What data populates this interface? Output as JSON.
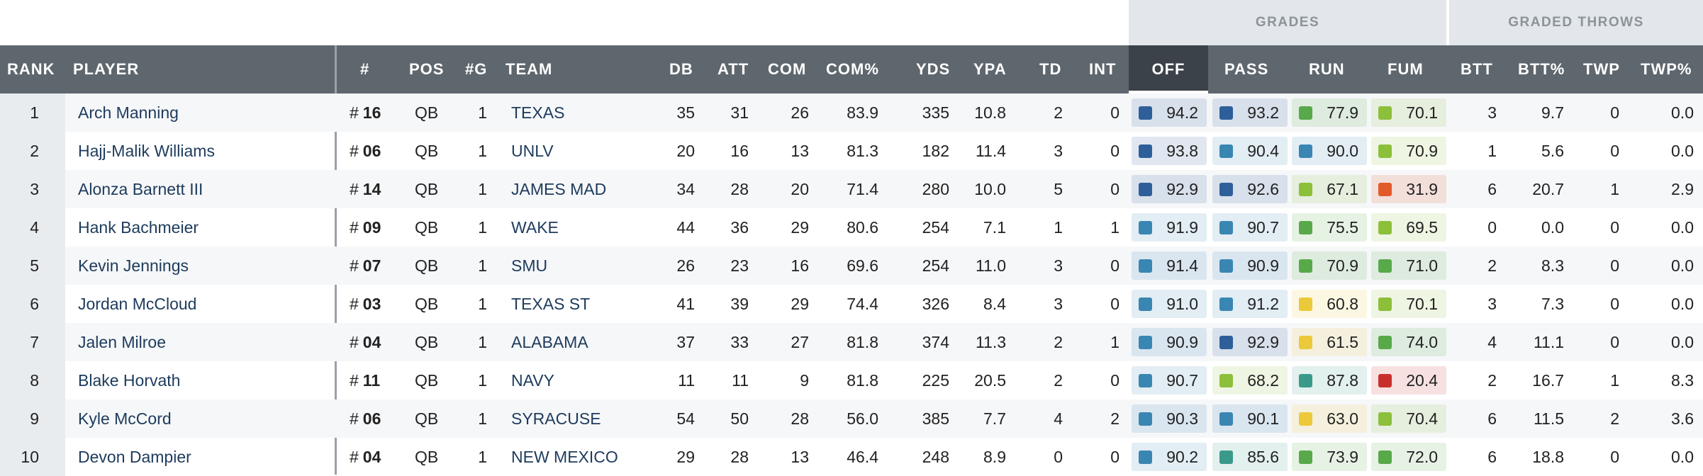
{
  "groups": {
    "grades": "GRADES",
    "graded_throws": "GRADED THROWS"
  },
  "headers": {
    "rank": "RANK",
    "player": "PLAYER",
    "num": "#",
    "pos": "POS",
    "games": "#G",
    "team": "TEAM",
    "db": "DB",
    "att": "ATT",
    "com": "COM",
    "com_pct": "COM%",
    "yds": "YDS",
    "ypa": "YPA",
    "td": "TD",
    "int": "INT",
    "off": "OFF",
    "pass": "PASS",
    "run": "RUN",
    "fum": "FUM",
    "btt": "BTT",
    "btt_pct": "BTT%",
    "twp": "TWP",
    "twp_pct": "TWP%"
  },
  "number_prefix": "#",
  "colors": {
    "dark_blue": "#2f5f9a",
    "blue": "#3a86b2",
    "teal": "#3a9a8a",
    "green": "#58a94a",
    "light_green": "#8cbf3a",
    "yellow": "#ecc93a",
    "orange": "#e25a2a",
    "red": "#c9302c"
  },
  "rows": [
    {
      "rank": "1",
      "player": "Arch Manning",
      "num": "16",
      "pos": "QB",
      "g": "1",
      "team": "TEXAS",
      "db": "35",
      "att": "31",
      "com": "26",
      "com_pct": "83.9",
      "yds": "335",
      "ypa": "10.8",
      "td": "2",
      "int": "0",
      "off": {
        "v": "94.2",
        "c": "dark_blue"
      },
      "pass": {
        "v": "93.2",
        "c": "dark_blue"
      },
      "run": {
        "v": "77.9",
        "c": "green"
      },
      "fum": {
        "v": "70.1",
        "c": "light_green"
      },
      "btt": "3",
      "btt_pct": "9.7",
      "twp": "0",
      "twp_pct": "0.0"
    },
    {
      "rank": "2",
      "player": "Hajj-Malik Williams",
      "num": "06",
      "pos": "QB",
      "g": "1",
      "team": "UNLV",
      "db": "20",
      "att": "16",
      "com": "13",
      "com_pct": "81.3",
      "yds": "182",
      "ypa": "11.4",
      "td": "3",
      "int": "0",
      "off": {
        "v": "93.8",
        "c": "dark_blue"
      },
      "pass": {
        "v": "90.4",
        "c": "blue"
      },
      "run": {
        "v": "90.0",
        "c": "blue"
      },
      "fum": {
        "v": "70.9",
        "c": "light_green"
      },
      "btt": "1",
      "btt_pct": "5.6",
      "twp": "0",
      "twp_pct": "0.0"
    },
    {
      "rank": "3",
      "player": "Alonza Barnett III",
      "num": "14",
      "pos": "QB",
      "g": "1",
      "team": "JAMES MAD",
      "db": "34",
      "att": "28",
      "com": "20",
      "com_pct": "71.4",
      "yds": "280",
      "ypa": "10.0",
      "td": "5",
      "int": "0",
      "off": {
        "v": "92.9",
        "c": "dark_blue"
      },
      "pass": {
        "v": "92.6",
        "c": "dark_blue"
      },
      "run": {
        "v": "67.1",
        "c": "light_green"
      },
      "fum": {
        "v": "31.9",
        "c": "orange"
      },
      "btt": "6",
      "btt_pct": "20.7",
      "twp": "1",
      "twp_pct": "2.9"
    },
    {
      "rank": "4",
      "player": "Hank Bachmeier",
      "num": "09",
      "pos": "QB",
      "g": "1",
      "team": "WAKE",
      "db": "44",
      "att": "36",
      "com": "29",
      "com_pct": "80.6",
      "yds": "254",
      "ypa": "7.1",
      "td": "1",
      "int": "1",
      "off": {
        "v": "91.9",
        "c": "blue"
      },
      "pass": {
        "v": "90.7",
        "c": "blue"
      },
      "run": {
        "v": "75.5",
        "c": "green"
      },
      "fum": {
        "v": "69.5",
        "c": "light_green"
      },
      "btt": "0",
      "btt_pct": "0.0",
      "twp": "0",
      "twp_pct": "0.0"
    },
    {
      "rank": "5",
      "player": "Kevin Jennings",
      "num": "07",
      "pos": "QB",
      "g": "1",
      "team": "SMU",
      "db": "26",
      "att": "23",
      "com": "16",
      "com_pct": "69.6",
      "yds": "254",
      "ypa": "11.0",
      "td": "3",
      "int": "0",
      "off": {
        "v": "91.4",
        "c": "blue"
      },
      "pass": {
        "v": "90.9",
        "c": "blue"
      },
      "run": {
        "v": "70.9",
        "c": "green"
      },
      "fum": {
        "v": "71.0",
        "c": "green"
      },
      "btt": "2",
      "btt_pct": "8.3",
      "twp": "0",
      "twp_pct": "0.0"
    },
    {
      "rank": "6",
      "player": "Jordan McCloud",
      "num": "03",
      "pos": "QB",
      "g": "1",
      "team": "TEXAS ST",
      "db": "41",
      "att": "39",
      "com": "29",
      "com_pct": "74.4",
      "yds": "326",
      "ypa": "8.4",
      "td": "3",
      "int": "0",
      "off": {
        "v": "91.0",
        "c": "blue"
      },
      "pass": {
        "v": "91.2",
        "c": "blue"
      },
      "run": {
        "v": "60.8",
        "c": "yellow"
      },
      "fum": {
        "v": "70.1",
        "c": "light_green"
      },
      "btt": "3",
      "btt_pct": "7.3",
      "twp": "0",
      "twp_pct": "0.0"
    },
    {
      "rank": "7",
      "player": "Jalen Milroe",
      "num": "04",
      "pos": "QB",
      "g": "1",
      "team": "ALABAMA",
      "db": "37",
      "att": "33",
      "com": "27",
      "com_pct": "81.8",
      "yds": "374",
      "ypa": "11.3",
      "td": "2",
      "int": "1",
      "off": {
        "v": "90.9",
        "c": "blue"
      },
      "pass": {
        "v": "92.9",
        "c": "dark_blue"
      },
      "run": {
        "v": "61.5",
        "c": "yellow"
      },
      "fum": {
        "v": "74.0",
        "c": "green"
      },
      "btt": "4",
      "btt_pct": "11.1",
      "twp": "0",
      "twp_pct": "0.0"
    },
    {
      "rank": "8",
      "player": "Blake Horvath",
      "num": "11",
      "pos": "QB",
      "g": "1",
      "team": "NAVY",
      "db": "11",
      "att": "11",
      "com": "9",
      "com_pct": "81.8",
      "yds": "225",
      "ypa": "20.5",
      "td": "2",
      "int": "0",
      "off": {
        "v": "90.7",
        "c": "blue"
      },
      "pass": {
        "v": "68.2",
        "c": "light_green"
      },
      "run": {
        "v": "87.8",
        "c": "teal"
      },
      "fum": {
        "v": "20.4",
        "c": "red"
      },
      "btt": "2",
      "btt_pct": "16.7",
      "twp": "1",
      "twp_pct": "8.3"
    },
    {
      "rank": "9",
      "player": "Kyle McCord",
      "num": "06",
      "pos": "QB",
      "g": "1",
      "team": "SYRACUSE",
      "db": "54",
      "att": "50",
      "com": "28",
      "com_pct": "56.0",
      "yds": "385",
      "ypa": "7.7",
      "td": "4",
      "int": "2",
      "off": {
        "v": "90.3",
        "c": "blue"
      },
      "pass": {
        "v": "90.1",
        "c": "blue"
      },
      "run": {
        "v": "63.0",
        "c": "yellow"
      },
      "fum": {
        "v": "70.4",
        "c": "light_green"
      },
      "btt": "6",
      "btt_pct": "11.5",
      "twp": "2",
      "twp_pct": "3.6"
    },
    {
      "rank": "10",
      "player": "Devon Dampier",
      "num": "04",
      "pos": "QB",
      "g": "1",
      "team": "NEW MEXICO",
      "db": "29",
      "att": "28",
      "com": "13",
      "com_pct": "46.4",
      "yds": "248",
      "ypa": "8.9",
      "td": "0",
      "int": "0",
      "off": {
        "v": "90.2",
        "c": "blue"
      },
      "pass": {
        "v": "85.6",
        "c": "teal"
      },
      "run": {
        "v": "73.9",
        "c": "green"
      },
      "fum": {
        "v": "72.0",
        "c": "green"
      },
      "btt": "6",
      "btt_pct": "18.8",
      "twp": "0",
      "twp_pct": "0.0"
    }
  ]
}
